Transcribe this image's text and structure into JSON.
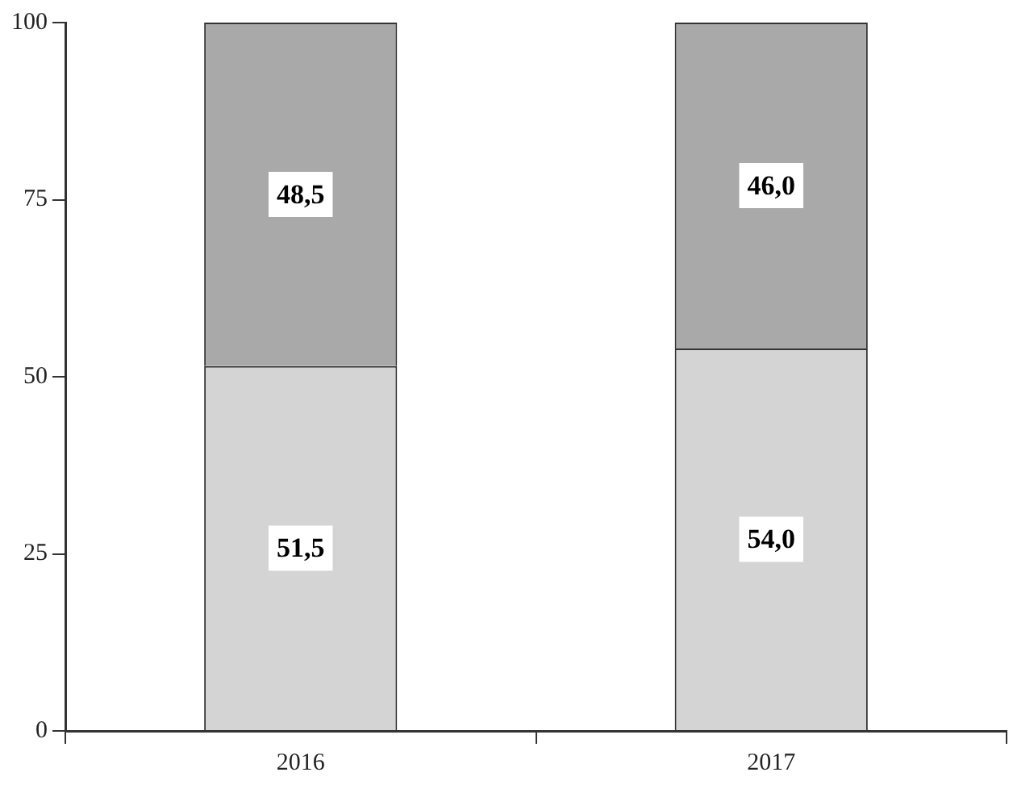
{
  "chart_data": {
    "type": "bar",
    "stacked": true,
    "categories": [
      "2016",
      "2017"
    ],
    "series": [
      {
        "color": "#d4d4d4",
        "values": [
          51.5,
          54.0
        ],
        "value_labels": [
          "51,5",
          "54,0"
        ]
      },
      {
        "color": "#a9a9a9",
        "values": [
          48.5,
          46.0
        ],
        "value_labels": [
          "48,5",
          "46,0"
        ]
      }
    ],
    "ylim": [
      0,
      100
    ],
    "yticks": [
      0,
      25,
      50,
      75,
      100
    ],
    "grid": false,
    "legend": false
  }
}
